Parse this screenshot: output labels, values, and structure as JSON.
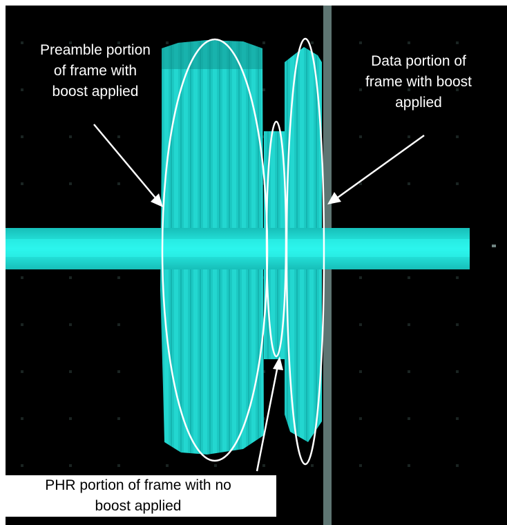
{
  "annotations": {
    "preamble": [
      "Preamble portion",
      "of frame with",
      "boost applied"
    ],
    "data": [
      "Data portion of",
      "frame with boost",
      "applied"
    ],
    "phr": [
      "PHR portion of frame with no",
      "boost applied"
    ]
  },
  "colors": {
    "screen_background": "#000000",
    "signal": "#1fd8d2",
    "signal_bright": "#22f0e8",
    "annotation_stroke": "#ffffff",
    "cursor_line": "#6f8a86"
  }
}
